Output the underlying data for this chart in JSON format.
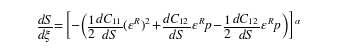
{
  "equation": "$\\dfrac{dS}{d\\xi} = \\left[-\\left(\\dfrac{1}{2}\\dfrac{dC_{11}}{dS}\\left(\\varepsilon^{R}\\right)^{2} + \\dfrac{dC_{12}}{dS}\\,\\varepsilon^{R} p - \\dfrac{1}{2}\\dfrac{dC_{12}}{dS}\\,\\varepsilon^{R} p\\right)\\right]^{\\alpha}$",
  "fontsize": 9.5,
  "fig_width": 3.39,
  "fig_height": 0.54,
  "dpi": 100,
  "text_color": "#000000",
  "bg_color": "#ffffff"
}
